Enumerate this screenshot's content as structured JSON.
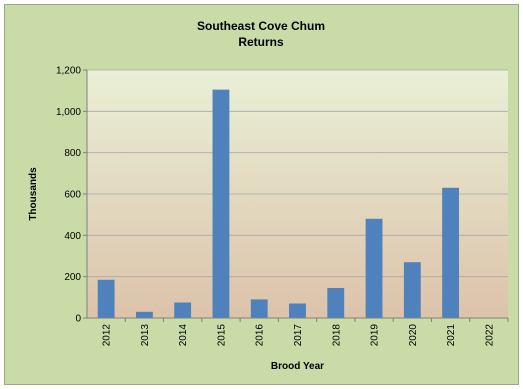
{
  "chart_data": {
    "type": "bar",
    "title": [
      "Southeast Cove Chum",
      "Returns"
    ],
    "xlabel": "Brood Year",
    "ylabel": "Thousands",
    "categories": [
      "2012",
      "2013",
      "2014",
      "2015",
      "2016",
      "2017",
      "2018",
      "2019",
      "2020",
      "2021",
      "2022"
    ],
    "values": [
      185,
      30,
      75,
      1105,
      90,
      70,
      145,
      480,
      270,
      630,
      0
    ],
    "ylim": [
      0,
      1200
    ],
    "yticks": [
      0,
      200,
      400,
      600,
      800,
      1000,
      1200
    ],
    "ytick_labels": [
      "0",
      "200",
      "400",
      "600",
      "800",
      "1,000",
      "1,200"
    ],
    "grid": true,
    "legend": "none"
  },
  "colors": {
    "outer_background": "#c9dba6",
    "plot_gradient_top": "#e9f0d6",
    "plot_gradient_bottom": "#dcc3aa",
    "bar": "#4f81bd",
    "gridline": "#a9a9a9",
    "axis": "#808080",
    "text": "#000000"
  }
}
